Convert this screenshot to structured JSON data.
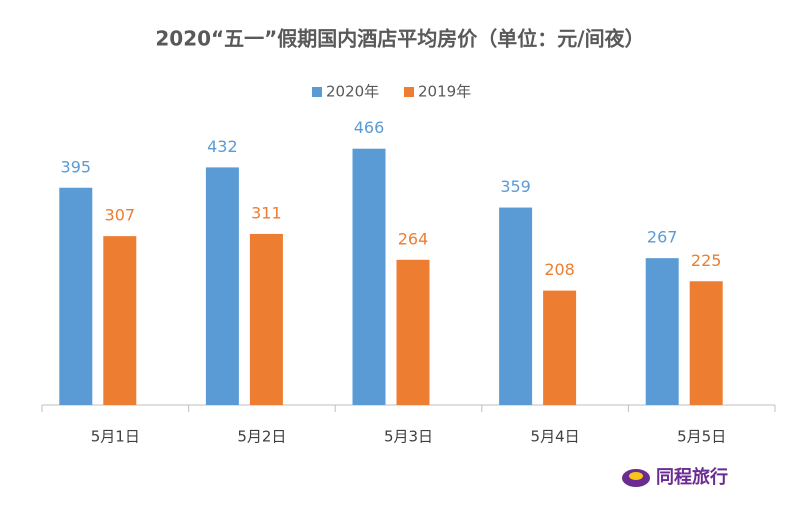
{
  "chart_data": {
    "type": "bar",
    "title": "2020“五一”假期国内酒店平均房价（单位：元/间夜）",
    "categories": [
      "5月1日",
      "5月2日",
      "5月3日",
      "5月4日",
      "5月5日"
    ],
    "series": [
      {
        "name": "2020年",
        "color": "#5b9bd5",
        "values": [
          395,
          432,
          466,
          359,
          267
        ]
      },
      {
        "name": "2019年",
        "color": "#ed7d31",
        "values": [
          307,
          311,
          264,
          208,
          225
        ]
      }
    ],
    "ylim": [
      0,
      500
    ],
    "legend": "top"
  },
  "logo": "同程旅行"
}
